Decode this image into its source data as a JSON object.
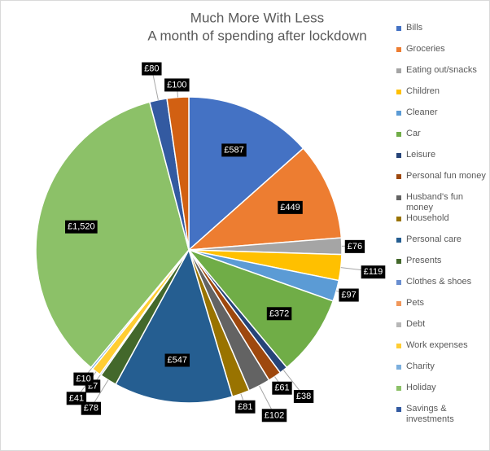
{
  "chart_data": {
    "type": "pie",
    "title": "Much More With Less",
    "subtitle": "A month of spending after lockdown",
    "categories": [
      "Bills",
      "Groceries",
      "Eating out/snacks",
      "Children",
      "Cleaner",
      "Car",
      "Leisure",
      "Personal fun money",
      "Husband's fun money",
      "Household",
      "Personal care",
      "Presents",
      "Clothes & shoes",
      "Pets",
      "Debt",
      "Work expenses",
      "Charity",
      "Holiday",
      "Savings & investments",
      null
    ],
    "values": [
      587,
      449,
      76,
      119,
      97,
      372,
      38,
      61,
      102,
      81,
      547,
      78,
      7,
      null,
      null,
      41,
      10,
      1520,
      80,
      100
    ],
    "value_labels": [
      "£587",
      "£449",
      "£76",
      "£119",
      "£97",
      "£372",
      "£38",
      "£61",
      "£102",
      "£81",
      "£547",
      "£78",
      "£7",
      null,
      null,
      "£41",
      "£10",
      "£1,520",
      "£80",
      "£100"
    ],
    "colors": [
      "#4472c4",
      "#ed7d31",
      "#a5a5a5",
      "#ffc000",
      "#5b9bd5",
      "#70ad47",
      "#264478",
      "#9e480e",
      "#636363",
      "#997300",
      "#255e91",
      "#43682b",
      "#698ed0",
      "#f1975a",
      "#b7b7b7",
      "#ffcd33",
      "#7cafdd",
      "#8cc168",
      "#335aa1",
      "#d26012"
    ],
    "legend": "right"
  }
}
